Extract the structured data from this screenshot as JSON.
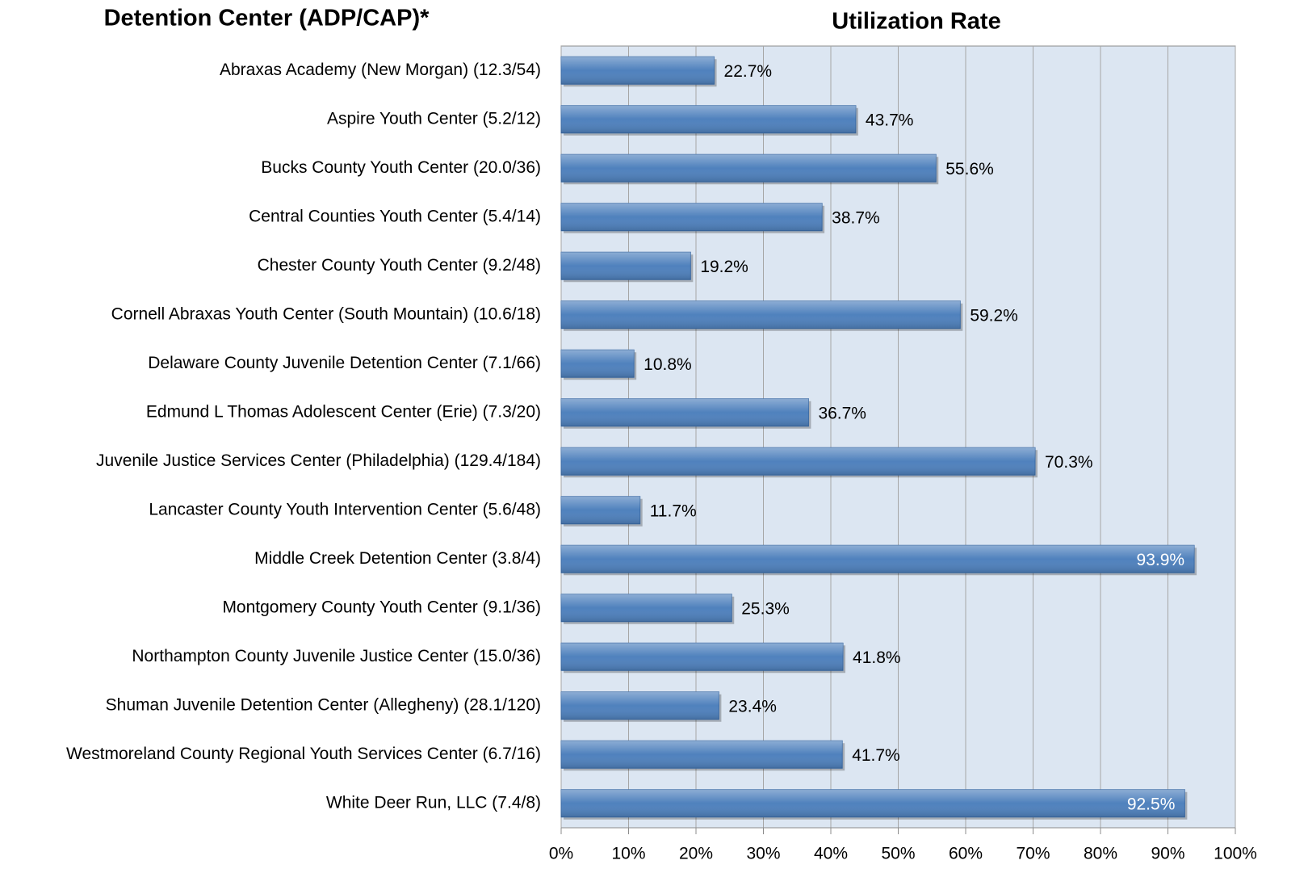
{
  "chart_data": {
    "type": "barh",
    "title": "Utilization Rate",
    "y_axis_label": "Detention Center (ADP/CAP)*",
    "categories": [
      "Abraxas Academy (New Morgan) (12.3/54)",
      "Aspire Youth Center (5.2/12)",
      "Bucks County Youth Center (20.0/36)",
      "Central Counties Youth Center (5.4/14)",
      "Chester County Youth Center (9.2/48)",
      "Cornell Abraxas Youth Center (South Mountain) (10.6/18)",
      "Delaware County Juvenile Detention Center (7.1/66)",
      "Edmund L Thomas Adolescent Center (Erie) (7.3/20)",
      "Juvenile Justice Services Center (Philadelphia) (129.4/184)",
      "Lancaster County Youth Intervention Center (5.6/48)",
      "Middle Creek Detention Center (3.8/4)",
      "Montgomery County Youth Center (9.1/36)",
      "Northampton County Juvenile Justice Center (15.0/36)",
      "Shuman Juvenile Detention Center (Allegheny) (28.1/120)",
      "Westmoreland County Regional Youth Services Center (6.7/16)",
      "White Deer Run, LLC (7.4/8)"
    ],
    "values": [
      22.7,
      43.7,
      55.6,
      38.7,
      19.2,
      59.2,
      10.8,
      36.7,
      70.3,
      11.7,
      93.9,
      25.3,
      41.8,
      23.4,
      41.7,
      92.5
    ],
    "value_labels": [
      "22.7%",
      "43.7%",
      "55.6%",
      "38.7%",
      "19.2%",
      "59.2%",
      "10.8%",
      "36.7%",
      "70.3%",
      "11.7%",
      "93.9%",
      "25.3%",
      "41.8%",
      "23.4%",
      "41.7%",
      "92.5%"
    ],
    "color": "#4f81bd",
    "xlim": [
      0,
      100
    ],
    "xticks": [
      {
        "value": 0,
        "label": "0%"
      },
      {
        "value": 10,
        "label": "10%"
      },
      {
        "value": 20,
        "label": "20%"
      },
      {
        "value": 30,
        "label": "30%"
      },
      {
        "value": 40,
        "label": "40%"
      },
      {
        "value": 50,
        "label": "50%"
      },
      {
        "value": 60,
        "label": "60%"
      },
      {
        "value": 70,
        "label": "70%"
      },
      {
        "value": 80,
        "label": "80%"
      },
      {
        "value": 90,
        "label": "90%"
      },
      {
        "value": 100,
        "label": "100%"
      }
    ],
    "grid": true
  }
}
